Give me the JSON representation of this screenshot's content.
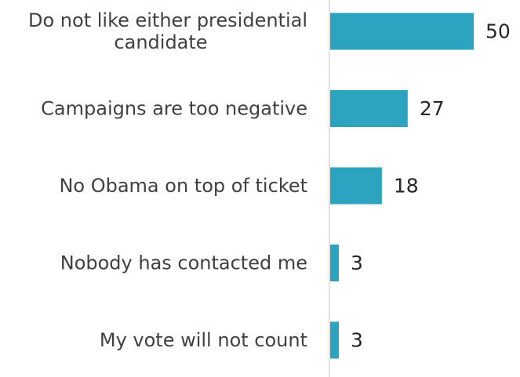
{
  "chart_data": {
    "type": "bar",
    "orientation": "horizontal",
    "categories": [
      [
        "Do not like either presidential",
        "candidate"
      ],
      [
        "Campaigns are too negative"
      ],
      [
        "No Obama on top of ticket"
      ],
      [
        "Nobody has contacted me"
      ],
      [
        "My vote will not count"
      ]
    ],
    "values": [
      50,
      27,
      18,
      3,
      3
    ],
    "value_labels": [
      "50",
      "27",
      "18",
      "3",
      "3"
    ],
    "title": "",
    "xlabel": "",
    "ylabel": "",
    "xlim": [
      0,
      65
    ],
    "grid": false,
    "legend": "none",
    "colors": {
      "bar": "#2CA3BF",
      "axis": "#D9D9D9",
      "category_text": "#404040",
      "value_text": "#262626"
    }
  }
}
